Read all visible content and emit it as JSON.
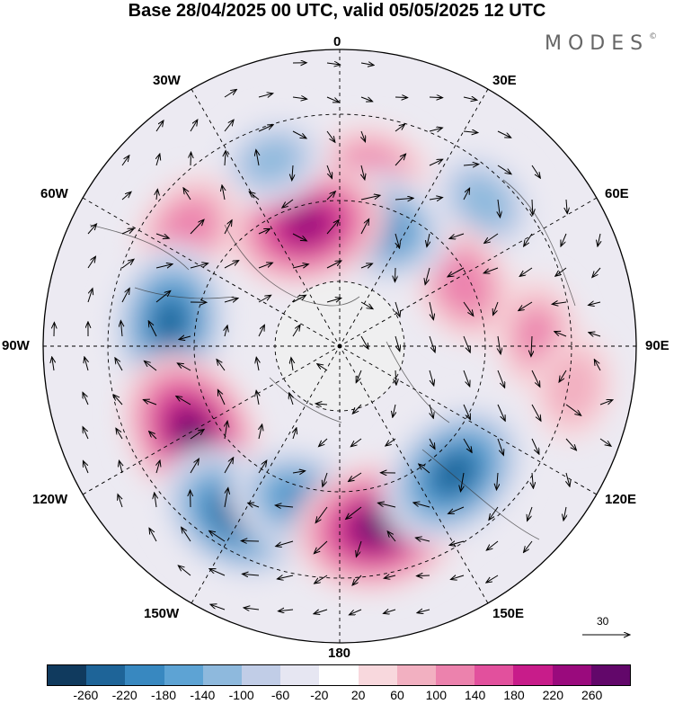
{
  "title": "Base 28/04/2025 00 UTC, valid 05/05/2025 12 UTC",
  "brand": "MODES",
  "brand_mark": "©",
  "longitude_labels": [
    "0",
    "30E",
    "60E",
    "90E",
    "120E",
    "150E",
    "180",
    "150W",
    "120W",
    "90W",
    "60W",
    "30W"
  ],
  "reference_vector_label": "30",
  "colorbar": {
    "colors": [
      "#103a5e",
      "#1e6498",
      "#3888c0",
      "#5da3d4",
      "#8eb9dd",
      "#c1cde7",
      "#e6e6f2",
      "#ffffff",
      "#f8d8dd",
      "#f2b0c1",
      "#ec82ad",
      "#e2509d",
      "#c81c8a",
      "#9a0a7d",
      "#62076a"
    ],
    "ticks": [
      "-260",
      "-220",
      "-180",
      "-140",
      "-100",
      "-60",
      "-20",
      "20",
      "60",
      "100",
      "140",
      "180",
      "220",
      "260"
    ]
  },
  "map_anomalies": [
    {
      "lon": 10,
      "lat": 36,
      "value": 120
    },
    {
      "lon": 45,
      "lat": 28,
      "value": -120
    },
    {
      "lon": 63,
      "lat": 48,
      "value": 130
    },
    {
      "lon": 87,
      "lat": 30,
      "value": 100
    },
    {
      "lon": 18,
      "lat": 52,
      "value": -200
    },
    {
      "lon": -15,
      "lat": 52,
      "value": 240
    },
    {
      "lon": -20,
      "lat": 30,
      "value": -110
    },
    {
      "lon": -53,
      "lat": 32,
      "value": 130
    },
    {
      "lon": -82,
      "lat": 38,
      "value": -230
    },
    {
      "lon": -120,
      "lat": 38,
      "value": 260
    },
    {
      "lon": -148,
      "lat": 30,
      "value": -240
    },
    {
      "lon": -165,
      "lat": 42,
      "value": -180
    },
    {
      "lon": 168,
      "lat": 34,
      "value": 270
    },
    {
      "lon": 138,
      "lat": 38,
      "value": -240
    },
    {
      "lon": 100,
      "lat": 18,
      "value": 80
    }
  ]
}
